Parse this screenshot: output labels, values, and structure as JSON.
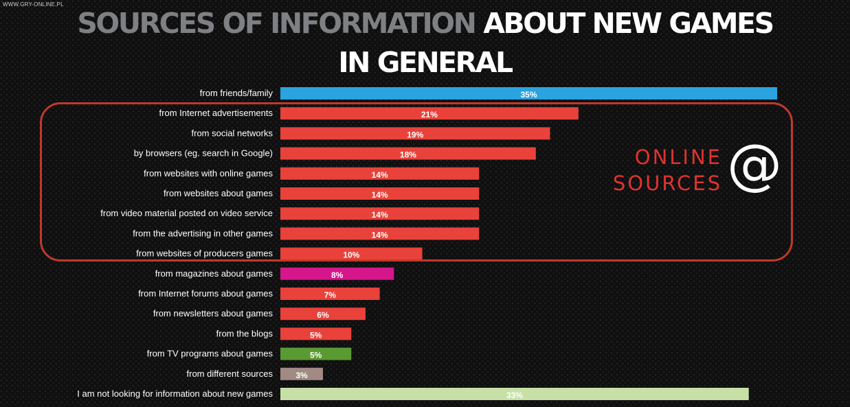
{
  "watermark": "WWW.GRY-ONLINE.PL",
  "title": {
    "grey": "SOURCES OF INFORMATION",
    "white1": "ABOUT NEW GAMES",
    "white2": "IN GENERAL"
  },
  "online_group": {
    "line1": "ONLINE",
    "line2": "SOURCES",
    "icon": "at-sign-icon",
    "color": "#e0332e"
  },
  "chart_data": {
    "type": "bar",
    "orientation": "horizontal",
    "title": "SOURCES OF INFORMATION ABOUT NEW GAMES IN GENERAL",
    "xlim": [
      0,
      35
    ],
    "value_suffix": "%",
    "categories": [
      "from friends/family",
      "from Internet advertisements",
      "from social networks",
      "by browsers (eg. search in Google)",
      "from websites with online games",
      "from websites about games",
      "from video material posted on  video service",
      "from the advertising in other games",
      "from websites of producers games",
      "from magazines about games",
      "from Internet forums about games",
      "from newsletters about games",
      "from the blogs",
      "from TV programs about games",
      "from different sources",
      "I am not looking for information about new games"
    ],
    "values": [
      35,
      21,
      19,
      18,
      14,
      14,
      14,
      14,
      10,
      8,
      7,
      6,
      5,
      5,
      3,
      33
    ],
    "colors": [
      "#2aa3e0",
      "#e8423b",
      "#e8423b",
      "#e8423b",
      "#e8423b",
      "#e8423b",
      "#e8423b",
      "#e8423b",
      "#e8423b",
      "#d6168b",
      "#e8423b",
      "#e8423b",
      "#e8423b",
      "#5a9a32",
      "#a08a83",
      "#c6e0a6"
    ]
  }
}
